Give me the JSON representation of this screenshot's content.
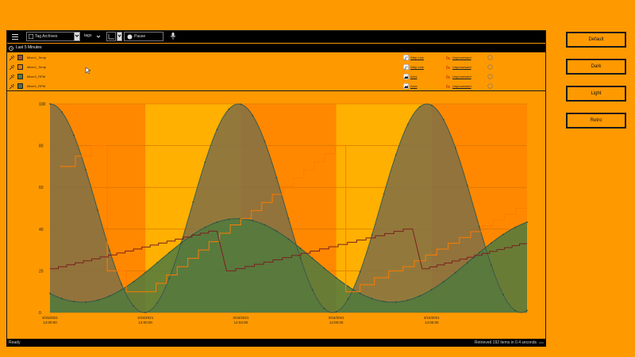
{
  "toolbar": {
    "source_label": "Tag Archives",
    "tags_label": "tags",
    "pause_label": "Pause"
  },
  "subbar": {
    "time_range": "Last 5 Minutes"
  },
  "tags": [
    {
      "name": "Mixer1_Temp",
      "color": "#a0522d",
      "style": "Step Line",
      "trend": "Unprocessed"
    },
    {
      "name": "Mixer1_Temp",
      "color": "#e07a00",
      "style": "Step Line",
      "trend": "Unprocessed"
    },
    {
      "name": "Mixer2_RPM",
      "color": "#5a7a3a",
      "style": "Area",
      "trend": "Unprocessed"
    },
    {
      "name": "Mixer1_RPM",
      "color": "#556b4a",
      "style": "Area",
      "trend": "Unprocessed"
    }
  ],
  "status": {
    "left": "Ready",
    "right": "Retrieved 192 items in 0.4 seconds"
  },
  "side_buttons": [
    "Default",
    "Dark",
    "Light",
    "Retro"
  ],
  "colors": {
    "background": "#ff9900",
    "band_light": "#ffb000",
    "band_dark": "#ff8800",
    "area_olive": "#7f7045",
    "area_green": "#4f7a3e",
    "step_orange": "#ff7a00",
    "step_brown": "#7a2020"
  },
  "chart_data": {
    "type": "area",
    "ylim": [
      0,
      100
    ],
    "yticks": [
      "100",
      "80",
      "60",
      "40",
      "20",
      "0"
    ],
    "xtick_labels": [
      {
        "date": "3/15/2021",
        "time": "14:00:00"
      },
      {
        "date": "3/15/2021",
        "time": "14:00:00"
      },
      {
        "date": "3/15/2021",
        "time": "14:04:00"
      },
      {
        "date": "3/15/2021",
        "time": "14:00:00"
      },
      {
        "date": "3/15/2021",
        "time": "14:00:00"
      }
    ]
  }
}
